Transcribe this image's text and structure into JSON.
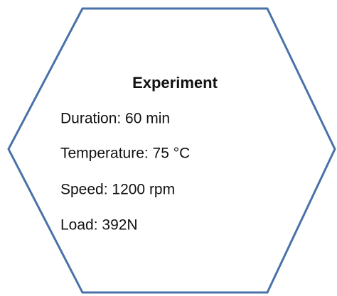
{
  "box": {
    "title": "Experiment",
    "lines": [
      "Duration: 60 min",
      "Temperature: 75 °C",
      "Speed: 1200 rpm",
      "Load: 392N"
    ]
  }
}
